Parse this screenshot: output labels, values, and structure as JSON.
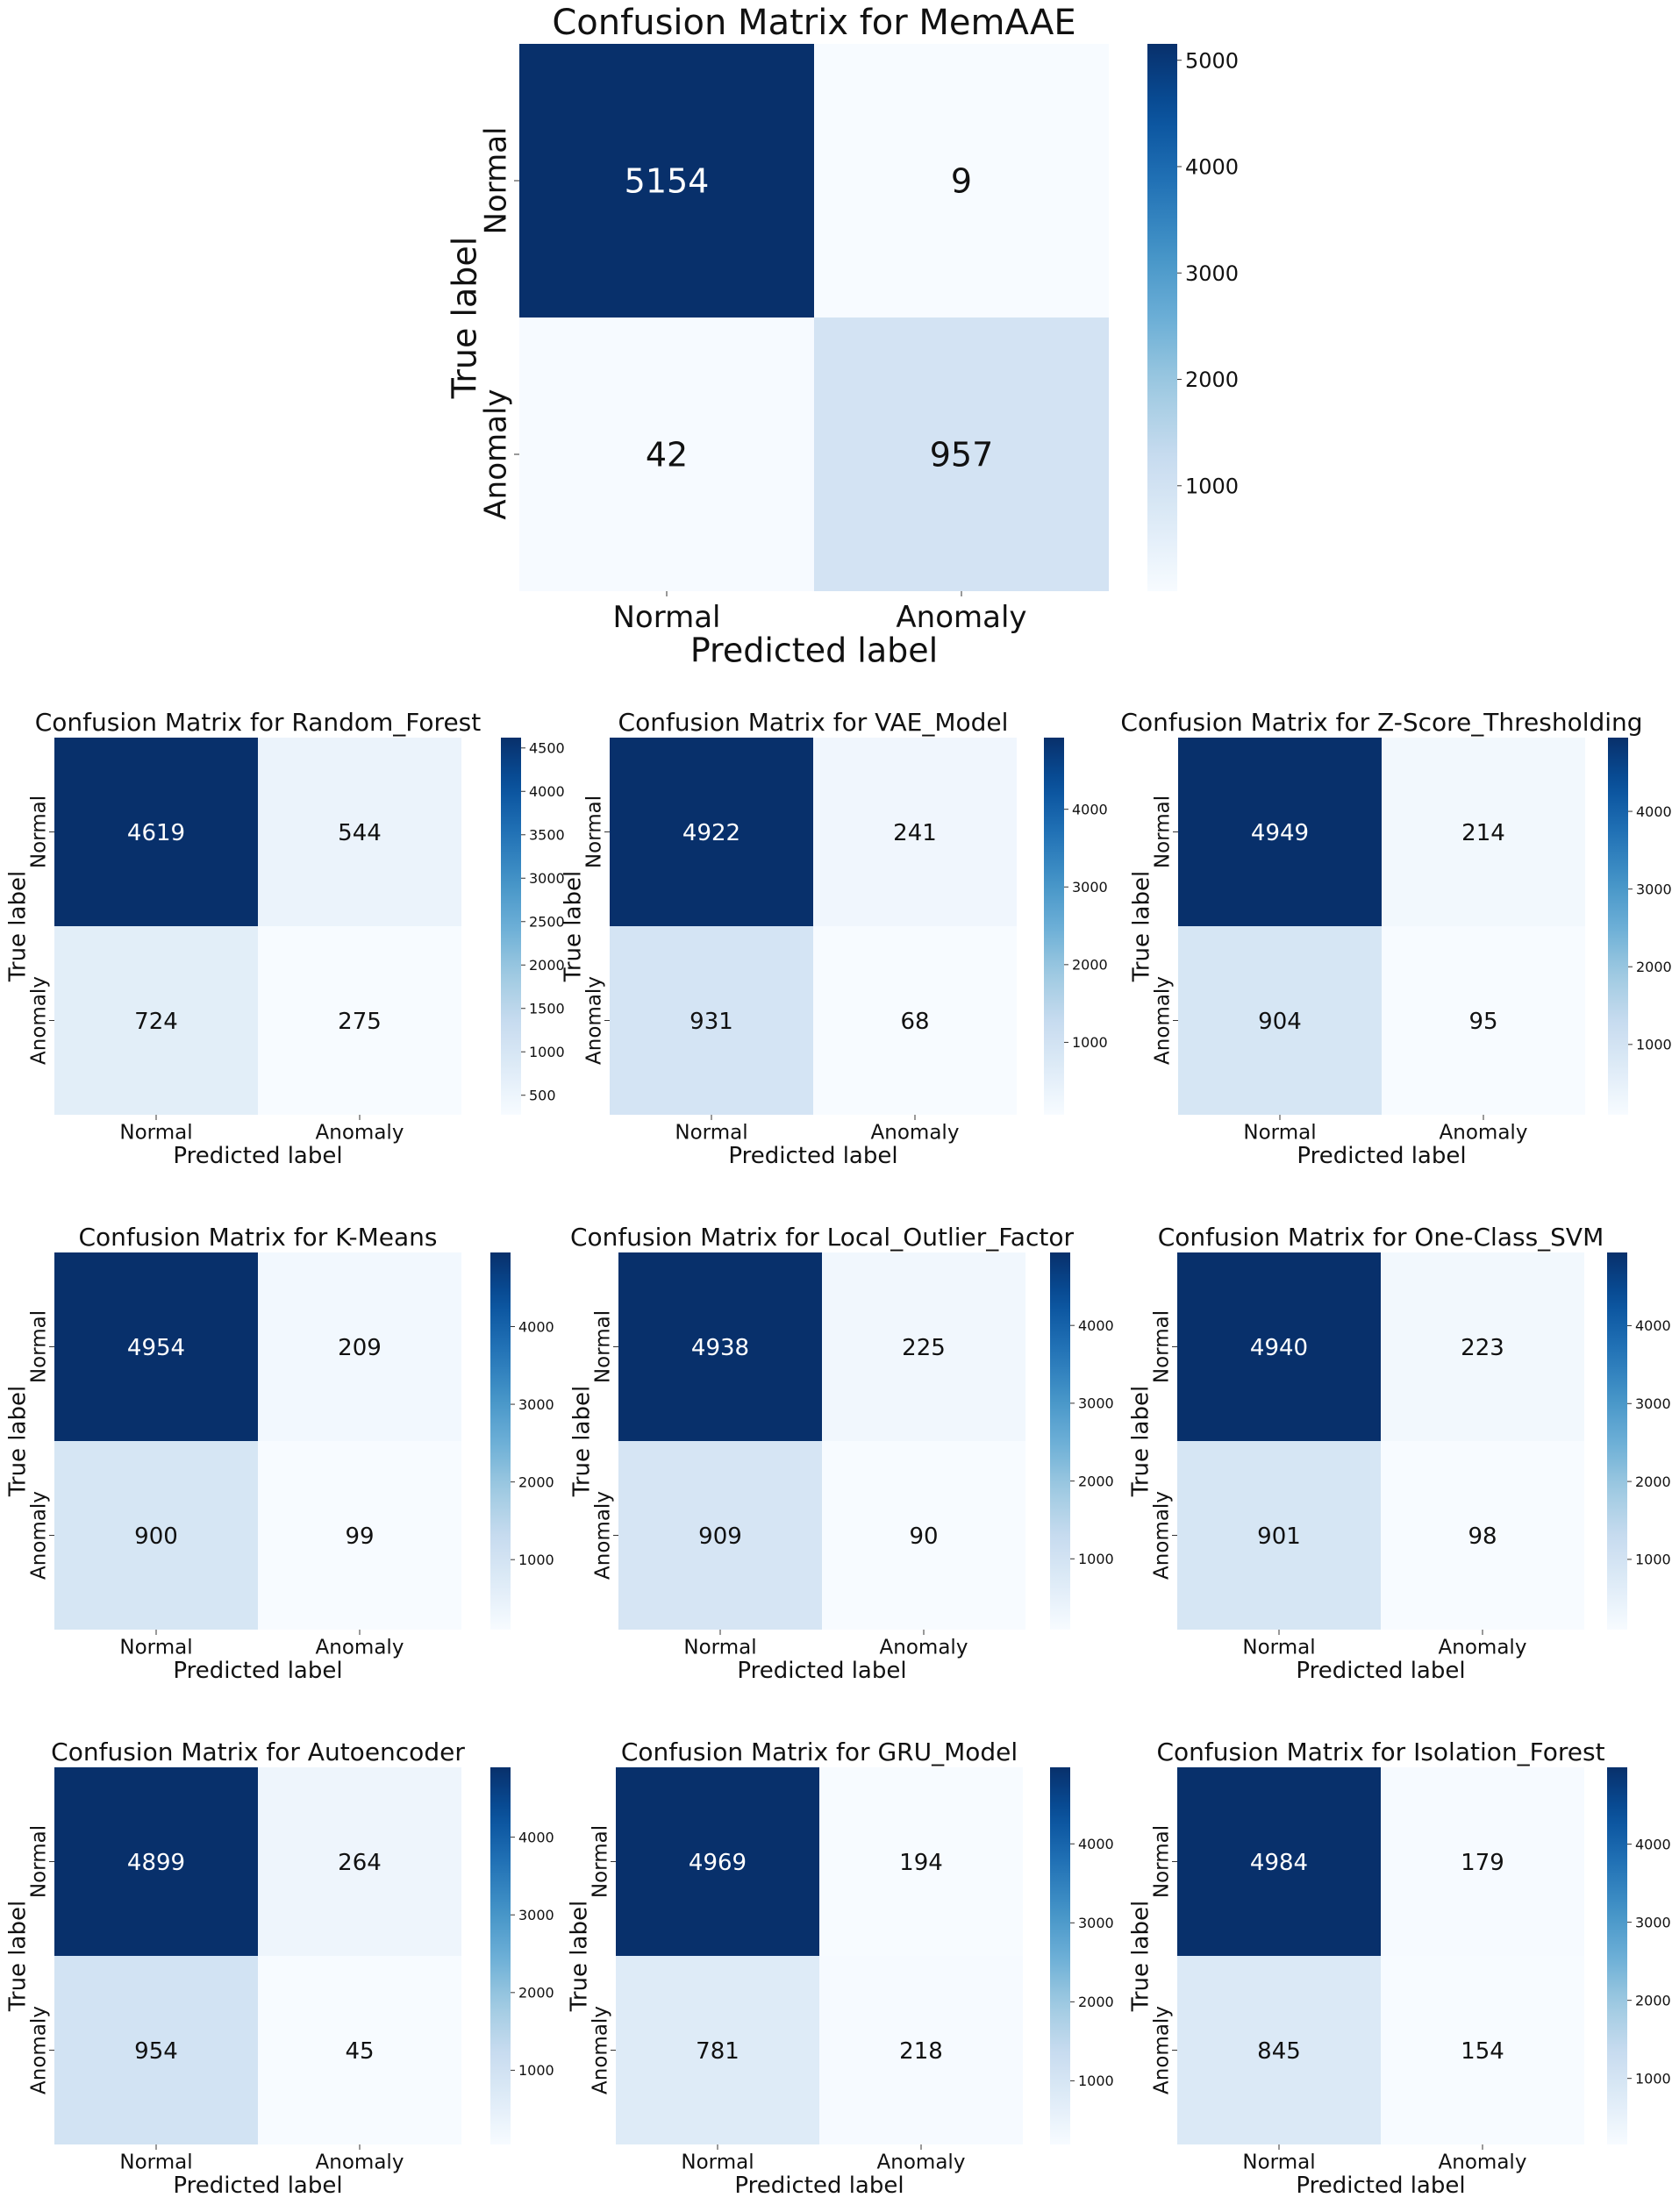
{
  "chart_data": [
    {
      "type": "heatmap",
      "title": "Confusion Matrix for MemAAE",
      "xlabel": "Predicted label",
      "ylabel": "True label",
      "x_categories": [
        "Normal",
        "Anomaly"
      ],
      "y_categories": [
        "Normal",
        "Anomaly"
      ],
      "values": [
        [
          5154,
          9
        ],
        [
          42,
          957
        ]
      ],
      "colorbar": {
        "ticks": [
          1000,
          2000,
          3000,
          4000,
          5000
        ],
        "range": [
          9,
          5154
        ],
        "colormap": "Blues"
      }
    },
    {
      "type": "heatmap",
      "title": "Confusion Matrix for Random_Forest",
      "xlabel": "Predicted label",
      "ylabel": "True label",
      "x_categories": [
        "Normal",
        "Anomaly"
      ],
      "y_categories": [
        "Normal",
        "Anomaly"
      ],
      "values": [
        [
          4619,
          544
        ],
        [
          724,
          275
        ]
      ],
      "colorbar": {
        "ticks": [
          500,
          1000,
          1500,
          2000,
          2500,
          3000,
          3500,
          4000,
          4500
        ],
        "range": [
          275,
          4619
        ],
        "colormap": "Blues"
      }
    },
    {
      "type": "heatmap",
      "title": "Confusion Matrix for VAE_Model",
      "xlabel": "Predicted label",
      "ylabel": "True label",
      "x_categories": [
        "Normal",
        "Anomaly"
      ],
      "y_categories": [
        "Normal",
        "Anomaly"
      ],
      "values": [
        [
          4922,
          241
        ],
        [
          931,
          68
        ]
      ],
      "colorbar": {
        "ticks": [
          1000,
          2000,
          3000,
          4000
        ],
        "range": [
          68,
          4922
        ],
        "colormap": "Blues"
      }
    },
    {
      "type": "heatmap",
      "title": "Confusion Matrix for Z-Score_Thresholding",
      "xlabel": "Predicted label",
      "ylabel": "True label",
      "x_categories": [
        "Normal",
        "Anomaly"
      ],
      "y_categories": [
        "Normal",
        "Anomaly"
      ],
      "values": [
        [
          4949,
          214
        ],
        [
          904,
          95
        ]
      ],
      "colorbar": {
        "ticks": [
          1000,
          2000,
          3000,
          4000
        ],
        "range": [
          95,
          4949
        ],
        "colormap": "Blues"
      }
    },
    {
      "type": "heatmap",
      "title": "Confusion Matrix for K-Means",
      "xlabel": "Predicted label",
      "ylabel": "True label",
      "x_categories": [
        "Normal",
        "Anomaly"
      ],
      "y_categories": [
        "Normal",
        "Anomaly"
      ],
      "values": [
        [
          4954,
          209
        ],
        [
          900,
          99
        ]
      ],
      "colorbar": {
        "ticks": [
          1000,
          2000,
          3000,
          4000
        ],
        "range": [
          99,
          4954
        ],
        "colormap": "Blues"
      }
    },
    {
      "type": "heatmap",
      "title": "Confusion Matrix for Local_Outlier_Factor",
      "xlabel": "Predicted label",
      "ylabel": "True label",
      "x_categories": [
        "Normal",
        "Anomaly"
      ],
      "y_categories": [
        "Normal",
        "Anomaly"
      ],
      "values": [
        [
          4938,
          225
        ],
        [
          909,
          90
        ]
      ],
      "colorbar": {
        "ticks": [
          1000,
          2000,
          3000,
          4000
        ],
        "range": [
          90,
          4938
        ],
        "colormap": "Blues"
      }
    },
    {
      "type": "heatmap",
      "title": "Confusion Matrix for One-Class_SVM",
      "xlabel": "Predicted label",
      "ylabel": "True label",
      "x_categories": [
        "Normal",
        "Anomaly"
      ],
      "y_categories": [
        "Normal",
        "Anomaly"
      ],
      "values": [
        [
          4940,
          223
        ],
        [
          901,
          98
        ]
      ],
      "colorbar": {
        "ticks": [
          1000,
          2000,
          3000,
          4000
        ],
        "range": [
          98,
          4940
        ],
        "colormap": "Blues"
      }
    },
    {
      "type": "heatmap",
      "title": "Confusion Matrix for Autoencoder",
      "xlabel": "Predicted label",
      "ylabel": "True label",
      "x_categories": [
        "Normal",
        "Anomaly"
      ],
      "y_categories": [
        "Normal",
        "Anomaly"
      ],
      "values": [
        [
          4899,
          264
        ],
        [
          954,
          45
        ]
      ],
      "colorbar": {
        "ticks": [
          1000,
          2000,
          3000,
          4000
        ],
        "range": [
          45,
          4899
        ],
        "colormap": "Blues"
      }
    },
    {
      "type": "heatmap",
      "title": "Confusion Matrix for GRU_Model",
      "xlabel": "Predicted label",
      "ylabel": "True label",
      "x_categories": [
        "Normal",
        "Anomaly"
      ],
      "y_categories": [
        "Normal",
        "Anomaly"
      ],
      "values": [
        [
          4969,
          194
        ],
        [
          781,
          218
        ]
      ],
      "colorbar": {
        "ticks": [
          1000,
          2000,
          3000,
          4000
        ],
        "range": [
          194,
          4969
        ],
        "colormap": "Blues"
      }
    },
    {
      "type": "heatmap",
      "title": "Confusion Matrix for Isolation_Forest",
      "xlabel": "Predicted label",
      "ylabel": "True label",
      "x_categories": [
        "Normal",
        "Anomaly"
      ],
      "y_categories": [
        "Normal",
        "Anomaly"
      ],
      "values": [
        [
          4984,
          179
        ],
        [
          845,
          154
        ]
      ],
      "colorbar": {
        "ticks": [
          1000,
          2000,
          3000,
          4000
        ],
        "range": [
          154,
          4984
        ],
        "colormap": "Blues"
      }
    }
  ]
}
